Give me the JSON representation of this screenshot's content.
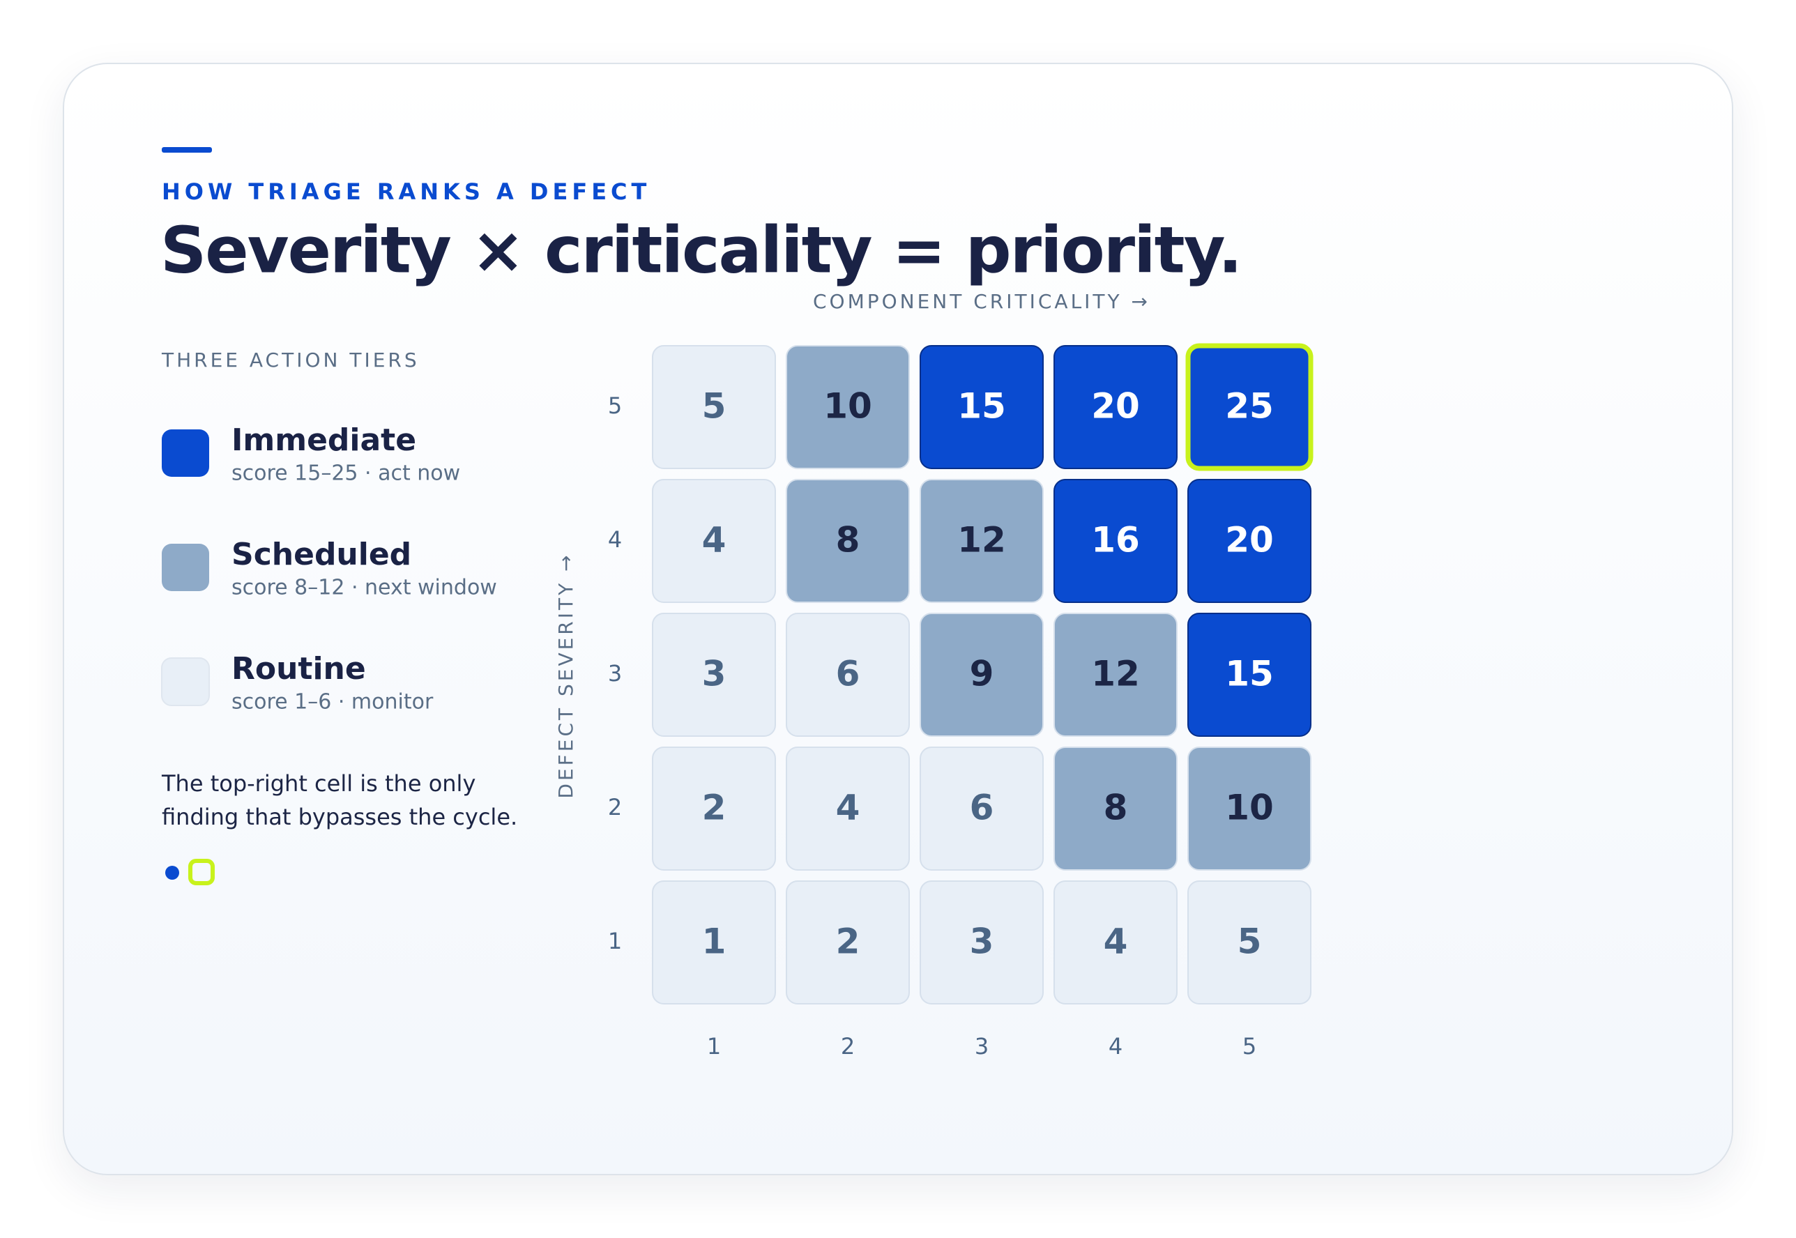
{
  "chart_data": {
    "type": "heatmap",
    "eyebrow": "HOW TRIAGE RANKS A DEFECT",
    "title": "Severity × criticality = priority.",
    "x_label": "COMPONENT CRITICALITY →",
    "y_label": "DEFECT SEVERITY →",
    "x": [
      1,
      2,
      3,
      4,
      5
    ],
    "y": [
      5,
      4,
      3,
      2,
      1
    ],
    "values": [
      [
        5,
        10,
        15,
        20,
        25
      ],
      [
        4,
        8,
        12,
        16,
        20
      ],
      [
        3,
        6,
        9,
        12,
        15
      ],
      [
        2,
        4,
        6,
        8,
        10
      ],
      [
        1,
        2,
        3,
        4,
        5
      ]
    ],
    "legend_title": "THREE ACTION TIERS",
    "tiers": [
      {
        "name": "Immediate",
        "description": "score 15–25 · act now",
        "min": 15,
        "max": 25,
        "color": "#0a4bd0",
        "text_color": "#ffffff"
      },
      {
        "name": "Scheduled",
        "description": "score 8–12 · next window",
        "min": 8,
        "max": 12,
        "color": "#8eaac8",
        "text_color": "#1c2545"
      },
      {
        "name": "Routine",
        "description": "score 1–6 · monitor",
        "min": 1,
        "max": 6,
        "color": "#e8eff7",
        "text_color": "#4a6585"
      }
    ],
    "highlight_color": "#c8f21c",
    "note": "The top-right cell is the only finding that bypasses the cycle."
  }
}
